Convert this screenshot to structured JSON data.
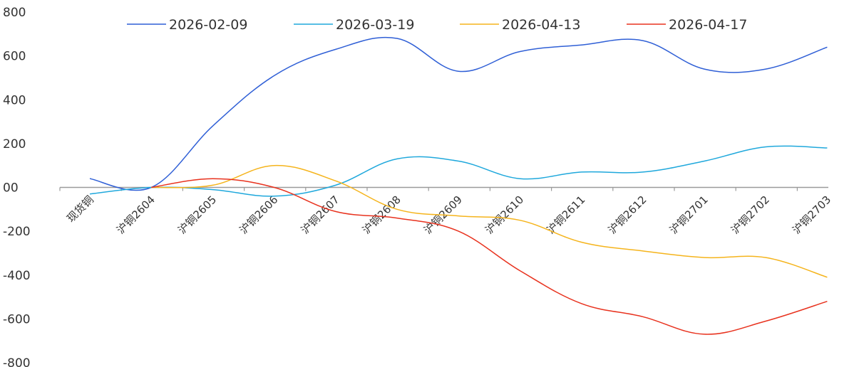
{
  "chart_data": {
    "type": "line",
    "categories": [
      "现货铜",
      "沪铜2604",
      "沪铜2605",
      "沪铜2606",
      "沪铜2607",
      "沪铜2608",
      "沪铜2609",
      "沪铜2610",
      "沪铜2611",
      "沪铜2612",
      "沪铜2701",
      "沪铜2702",
      "沪铜2703"
    ],
    "series": [
      {
        "name": "2026-02-09",
        "color": "#2f5fd6",
        "values": [
          40,
          0,
          280,
          510,
          630,
          680,
          530,
          620,
          650,
          670,
          540,
          540,
          640
        ]
      },
      {
        "name": "2026-03-19",
        "color": "#1fa8dc",
        "values": [
          -30,
          0,
          -10,
          -40,
          10,
          130,
          120,
          40,
          70,
          70,
          120,
          185,
          180
        ]
      },
      {
        "name": "2026-04-13",
        "color": "#f5b41c",
        "values": [
          null,
          0,
          10,
          100,
          30,
          -100,
          -130,
          -150,
          -250,
          -290,
          -320,
          -320,
          -410
        ]
      },
      {
        "name": "2026-04-17",
        "color": "#e8321e",
        "values": [
          null,
          0,
          40,
          0,
          -110,
          -140,
          -200,
          -380,
          -530,
          -590,
          -670,
          -610,
          -520
        ]
      }
    ],
    "yticks": [
      "800",
      "600",
      "400",
      "200",
      "00",
      "-200",
      "-400",
      "-600",
      "-800"
    ],
    "ylim": [
      -800,
      800
    ],
    "grid": false,
    "legend": "top"
  }
}
